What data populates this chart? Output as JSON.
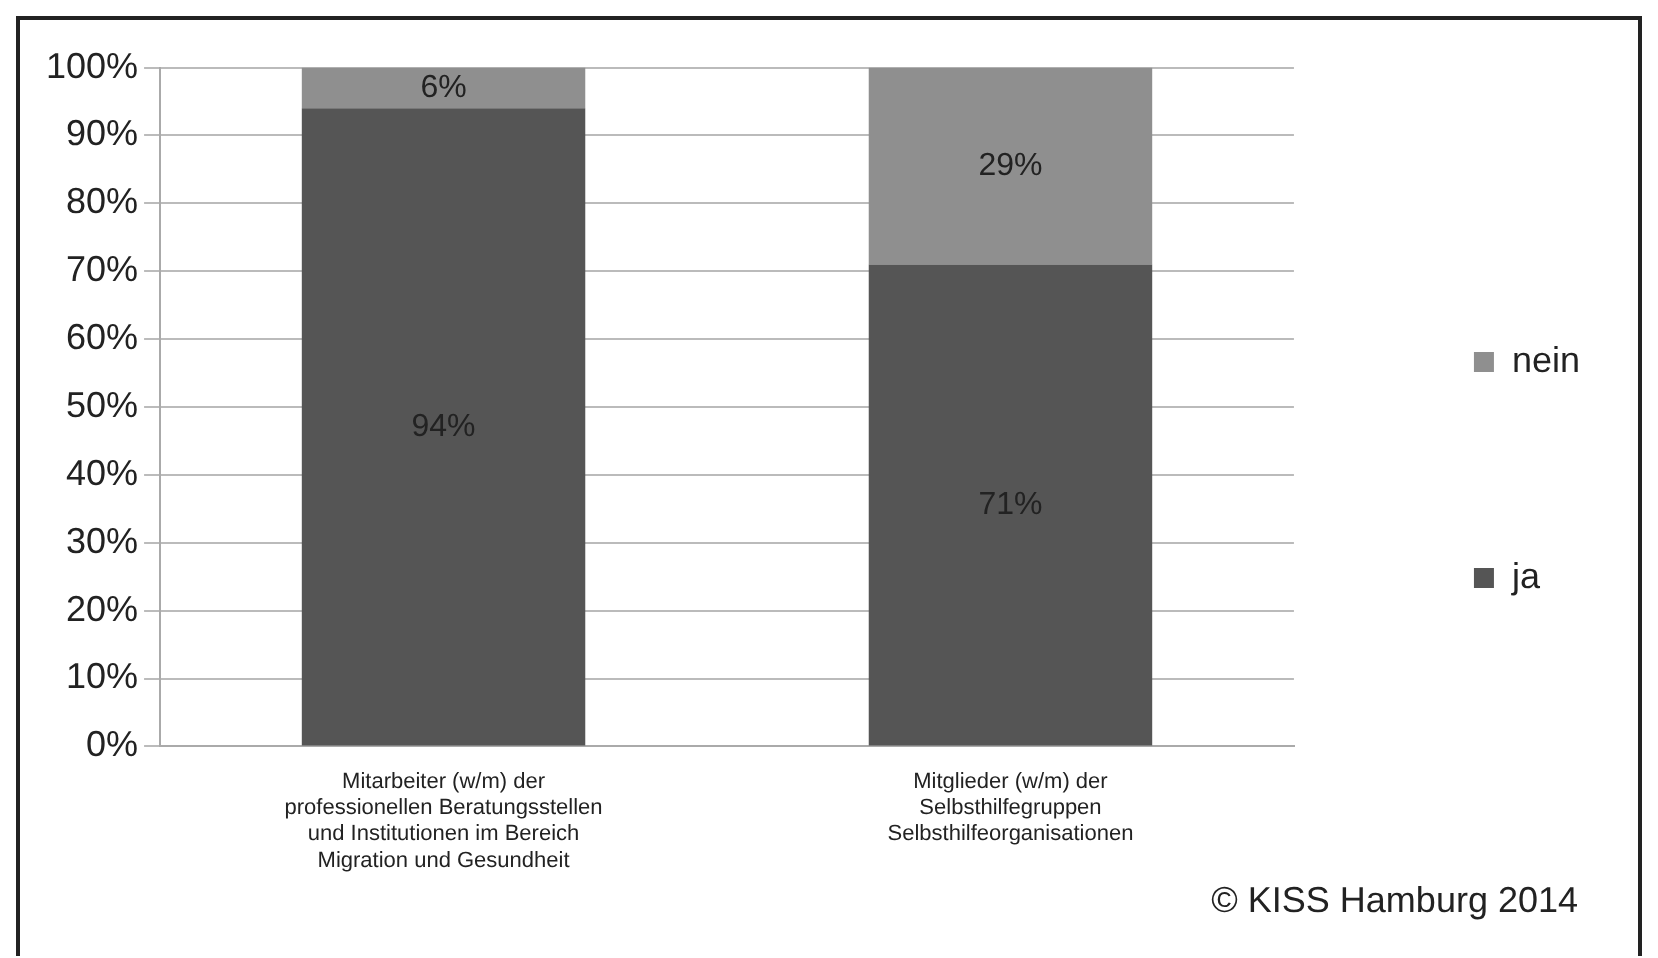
{
  "chart_data": {
    "type": "bar",
    "stacked": true,
    "categories": [
      "Mitarbeiter (w/m) der professionellen Beratungsstellen und Institutionen im Bereich Migration und Gesundheit",
      "Mitglieder (w/m) der Selbsthilfegruppen Selbsthilfeorganisationen"
    ],
    "series": [
      {
        "name": "ja",
        "color": "#555555",
        "values": [
          94,
          71
        ],
        "value_labels": [
          "94%",
          "71%"
        ]
      },
      {
        "name": "nein",
        "color": "#8f8f8f",
        "values": [
          6,
          29
        ],
        "value_labels": [
          "6%",
          "29%"
        ]
      }
    ],
    "ylim": [
      0,
      100
    ],
    "yticks": [
      {
        "value": 0,
        "label": "0%"
      },
      {
        "value": 10,
        "label": "10%"
      },
      {
        "value": 20,
        "label": "20%"
      },
      {
        "value": 30,
        "label": "30%"
      },
      {
        "value": 40,
        "label": "40%"
      },
      {
        "value": 50,
        "label": "50%"
      },
      {
        "value": 60,
        "label": "60%"
      },
      {
        "value": 70,
        "label": "70%"
      },
      {
        "value": 80,
        "label": "80%"
      },
      {
        "value": 90,
        "label": "90%"
      },
      {
        "value": 100,
        "label": "100%"
      }
    ],
    "grid": "y",
    "legend": "right",
    "annotations": [
      "© KISS Hamburg 2014"
    ]
  }
}
